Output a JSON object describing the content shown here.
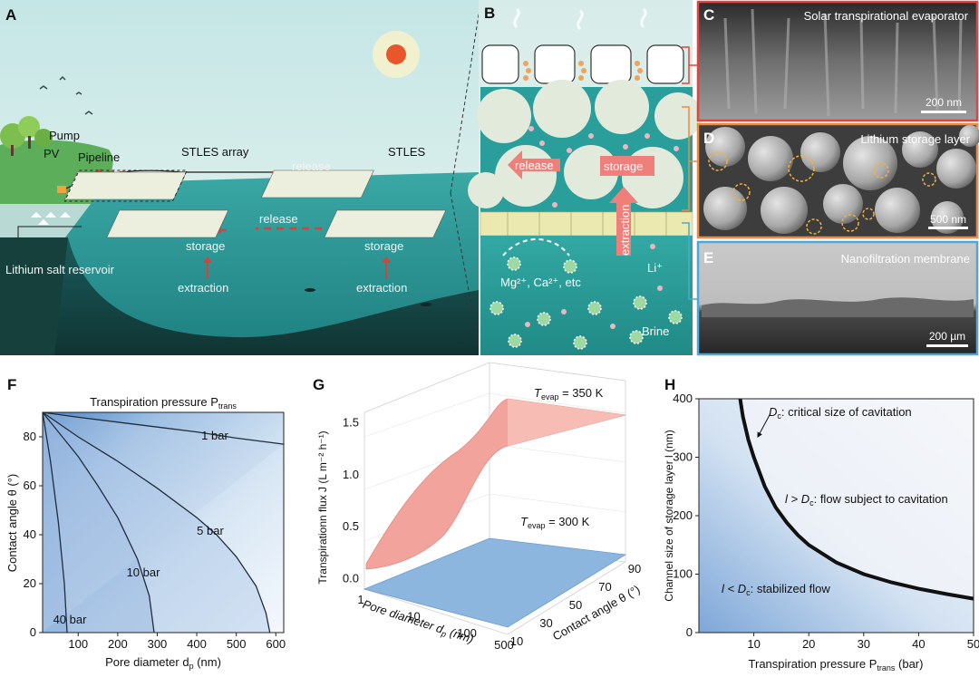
{
  "colors": {
    "sky_top": "#bfe1e3",
    "sea": "#2e9a99",
    "land_dark": "#1a3a36",
    "storage_layer": "#dfe9d8",
    "membrane": "#ece9b0",
    "brine": "#2fa39f",
    "arrow_pink": "#ee7f7a",
    "release_dash": "#d9413c",
    "red_frame": "#e2433e",
    "orange_frame": "#f08a3b",
    "blue_frame": "#4aa9d8",
    "contour_blue": "#4a86c6",
    "surface_red": "#f2a49c",
    "surface_blue": "#8db6df"
  },
  "panelA": {
    "letter": "A",
    "labels": {
      "pump": "Pump",
      "pv": "PV",
      "pipeline": "Pipeline",
      "stles_array": "STLES array",
      "stles": "STLES",
      "release1": "release",
      "release2": "release",
      "storage1": "storage",
      "storage2": "storage",
      "extraction1": "extraction",
      "extraction2": "extraction",
      "reservoir": "Lithium salt reservoir"
    }
  },
  "panelB": {
    "letter": "B",
    "labels": {
      "release": "release",
      "storage": "storage",
      "extraction": "extraction",
      "ions": "Mg²⁺, Ca²⁺, etc",
      "li": "Li⁺",
      "brine": "Brine"
    }
  },
  "panelC": {
    "letter": "C",
    "title": "Solar transpirational evaporator",
    "scale": "200 nm"
  },
  "panelD": {
    "letter": "D",
    "title": "Lithium storage layer",
    "scale": "500 nm"
  },
  "panelE": {
    "letter": "E",
    "title": "Nanofiltration membrane",
    "scale": "200 µm"
  },
  "chart_data": [
    {
      "type": "heatmap",
      "panel": "F",
      "title": "Transpiration pressure P",
      "title_sub": "trans",
      "xlabel": "Pore diameter d",
      "xlabel_sub": "p",
      "xlabel_unit": " (nm)",
      "ylabel": "Contact angle θ (°)",
      "xlim": [
        10,
        620
      ],
      "ylim": [
        0,
        90
      ],
      "xticks": [
        100,
        200,
        300,
        400,
        500,
        600
      ],
      "yticks": [
        0,
        20,
        40,
        60,
        80
      ],
      "contours": [
        {
          "label": "1 bar",
          "points": [
            [
              10,
              90
            ],
            [
              100,
              88
            ],
            [
              200,
              86
            ],
            [
              300,
              84
            ],
            [
              400,
              82
            ],
            [
              500,
              79.5
            ],
            [
              620,
              77
            ]
          ]
        },
        {
          "label": "5 bar",
          "points": [
            [
              10,
              90
            ],
            [
              100,
              80
            ],
            [
              200,
              70
            ],
            [
              300,
              59
            ],
            [
              400,
              47
            ],
            [
              450,
              40
            ],
            [
              500,
              31
            ],
            [
              550,
              19
            ],
            [
              575,
              8
            ],
            [
              585,
              0
            ]
          ]
        },
        {
          "label": "10 bar",
          "points": [
            [
              10,
              90
            ],
            [
              50,
              82
            ],
            [
              100,
              72
            ],
            [
              150,
              60
            ],
            [
              200,
              47
            ],
            [
              250,
              30
            ],
            [
              280,
              15
            ],
            [
              292,
              0
            ]
          ]
        },
        {
          "label": "40 bar",
          "points": [
            [
              10,
              90
            ],
            [
              30,
              70
            ],
            [
              50,
              45
            ],
            [
              65,
              20
            ],
            [
              72,
              0
            ]
          ]
        }
      ]
    },
    {
      "type": "surface",
      "panel": "G",
      "zlabel": "Transpirationn flux J (L m⁻² h⁻¹)",
      "xlabel": "Pore diameter d",
      "xlabel_sub": "p",
      "xlabel_unit": " (nm)",
      "ylabel": "Contact angle θ (°)",
      "zlim": [
        -0.1,
        1.6
      ],
      "zticks": [
        0.0,
        0.5,
        1.0,
        1.5
      ],
      "zticklabels": [
        "0.0",
        "0.5",
        "1.0",
        "1.5"
      ],
      "xticks": [
        "1",
        "10",
        "100",
        "500"
      ],
      "yticks": [
        "10",
        "30",
        "50",
        "70",
        "90"
      ],
      "series": [
        {
          "name": "T",
          "sub": "evap",
          "suffix": " = 350 K",
          "color": "#f2a49c"
        },
        {
          "name": "T",
          "sub": "evap",
          "suffix": " = 300 K",
          "color": "#8db6df"
        }
      ]
    },
    {
      "type": "line",
      "panel": "H",
      "xlabel": "Transpiration pressure P",
      "xlabel_sub": "trans",
      "xlabel_unit": " (bar)",
      "ylabel": "Channel size of storage layer l (nm)",
      "xlim": [
        0,
        50
      ],
      "ylim": [
        0,
        400
      ],
      "xticks": [
        10,
        20,
        30,
        40,
        50
      ],
      "yticks": [
        0,
        100,
        200,
        300,
        400
      ],
      "x": [
        7.5,
        8,
        9,
        10,
        12,
        14,
        16,
        18,
        20,
        25,
        30,
        35,
        40,
        45,
        50
      ],
      "y": [
        400,
        370,
        330,
        300,
        250,
        214,
        188,
        167,
        150,
        120,
        100,
        86,
        75,
        66,
        58
      ],
      "annotations": {
        "dc_a": "D",
        "dc_b": "c",
        "dc_c": ": critical size of cavitation",
        "upper_a": "l > D",
        "upper_b": "c",
        "upper_c": ": flow subject to cavitation",
        "lower_a": "l < D",
        "lower_b": "c",
        "lower_c": ": stabilized flow"
      }
    }
  ],
  "panel_letters": {
    "F": "F",
    "G": "G",
    "H": "H"
  }
}
